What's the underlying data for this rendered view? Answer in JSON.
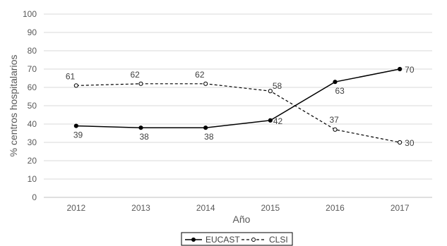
{
  "chart_data": {
    "type": "line",
    "title": "",
    "xlabel": "Año",
    "ylabel": "% centros hospitalarios",
    "categories": [
      "2012",
      "2013",
      "2014",
      "2015",
      "2016",
      "2017"
    ],
    "ylim": [
      0,
      100
    ],
    "yticks": [
      "0",
      "10",
      "20",
      "30",
      "40",
      "50",
      "60",
      "70",
      "80",
      "90",
      "100"
    ],
    "grid": true,
    "legend_position": "bottom",
    "series": [
      {
        "name": "EUCAST",
        "values": [
          39,
          38,
          38,
          42,
          63,
          70
        ],
        "style": "solid",
        "marker": "filled-circle",
        "color": "#000000"
      },
      {
        "name": "CLSI",
        "values": [
          61,
          62,
          62,
          58,
          37,
          30
        ],
        "style": "dashed",
        "marker": "open-circle",
        "color": "#000000"
      }
    ],
    "data_labels": {
      "EUCAST": [
        "39",
        "38",
        "38",
        "42",
        "63",
        "70"
      ],
      "CLSI": [
        "61",
        "62",
        "62",
        "58",
        "37",
        "30"
      ]
    }
  },
  "colors": {
    "grid": "#d9d9d9",
    "axis": "#bfbfbf",
    "text": "#595959"
  }
}
